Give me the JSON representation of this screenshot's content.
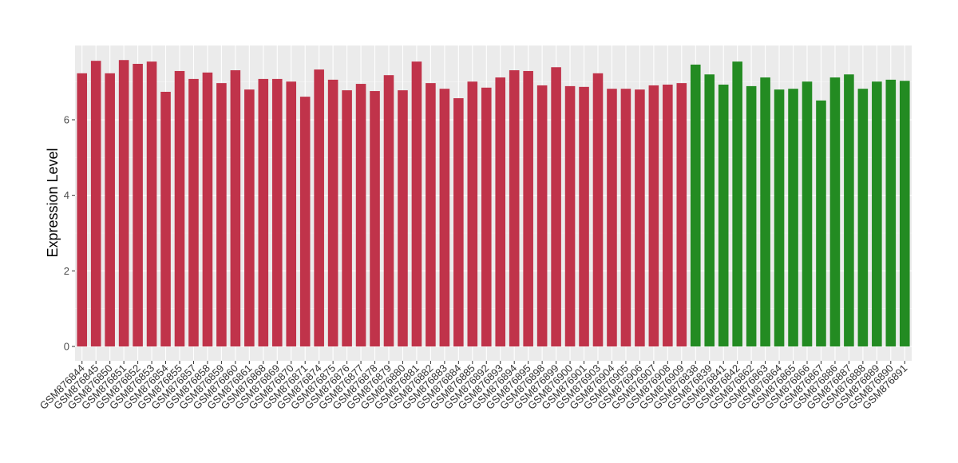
{
  "chart_data": {
    "type": "bar",
    "title": "",
    "xlabel": "",
    "ylabel": "Expression Level",
    "ylim": [
      0,
      7.95
    ],
    "yticks": [
      0,
      2,
      4,
      6
    ],
    "grid": true,
    "legend": "none",
    "colors": {
      "group1": "#C0334A",
      "group2": "#238B22",
      "panel": "#EBEBEB"
    },
    "categories": [
      "GSM876844",
      "GSM876845",
      "GSM876850",
      "GSM876851",
      "GSM876852",
      "GSM876853",
      "GSM876854",
      "GSM876855",
      "GSM876857",
      "GSM876858",
      "GSM876859",
      "GSM876860",
      "GSM876861",
      "GSM876868",
      "GSM876869",
      "GSM876870",
      "GSM876871",
      "GSM876874",
      "GSM876875",
      "GSM876876",
      "GSM876877",
      "GSM876878",
      "GSM876879",
      "GSM876880",
      "GSM876881",
      "GSM876882",
      "GSM876883",
      "GSM876884",
      "GSM876885",
      "GSM876892",
      "GSM876893",
      "GSM876894",
      "GSM876895",
      "GSM876898",
      "GSM876899",
      "GSM876900",
      "GSM876901",
      "GSM876903",
      "GSM876904",
      "GSM876905",
      "GSM876906",
      "GSM876907",
      "GSM876908",
      "GSM876909",
      "GSM876838",
      "GSM876839",
      "GSM876841",
      "GSM876842",
      "GSM876862",
      "GSM876863",
      "GSM876864",
      "GSM876865",
      "GSM876866",
      "GSM876867",
      "GSM876886",
      "GSM876887",
      "GSM876888",
      "GSM876889",
      "GSM876890",
      "GSM876891"
    ],
    "values": [
      7.23,
      7.56,
      7.23,
      7.58,
      7.48,
      7.54,
      6.74,
      7.29,
      7.08,
      7.25,
      6.97,
      7.31,
      6.8,
      7.08,
      7.08,
      7.01,
      6.61,
      7.33,
      7.06,
      6.78,
      6.95,
      6.76,
      7.18,
      6.78,
      7.54,
      6.97,
      6.82,
      6.57,
      7.01,
      6.85,
      7.12,
      7.31,
      7.29,
      6.91,
      7.39,
      6.89,
      6.87,
      7.23,
      6.82,
      6.82,
      6.8,
      6.91,
      6.93,
      6.97,
      7.46,
      7.2,
      6.93,
      7.54,
      6.89,
      7.12,
      6.8,
      6.82,
      7.01,
      6.51,
      7.12,
      7.2,
      6.82,
      7.01,
      7.06,
      7.03
    ],
    "groups": [
      "group1",
      "group1",
      "group1",
      "group1",
      "group1",
      "group1",
      "group1",
      "group1",
      "group1",
      "group1",
      "group1",
      "group1",
      "group1",
      "group1",
      "group1",
      "group1",
      "group1",
      "group1",
      "group1",
      "group1",
      "group1",
      "group1",
      "group1",
      "group1",
      "group1",
      "group1",
      "group1",
      "group1",
      "group1",
      "group1",
      "group1",
      "group1",
      "group1",
      "group1",
      "group1",
      "group1",
      "group1",
      "group1",
      "group1",
      "group1",
      "group1",
      "group1",
      "group1",
      "group1",
      "group2",
      "group2",
      "group2",
      "group2",
      "group2",
      "group2",
      "group2",
      "group2",
      "group2",
      "group2",
      "group2",
      "group2",
      "group2",
      "group2",
      "group2",
      "group2"
    ]
  }
}
